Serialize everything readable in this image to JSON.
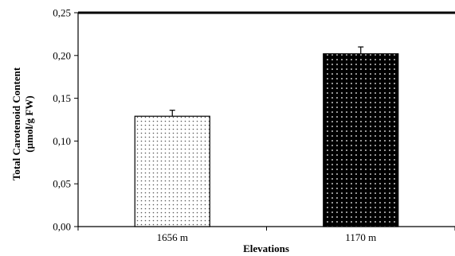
{
  "chart_data": {
    "type": "bar",
    "title": "",
    "xlabel": "Elevations",
    "ylabel_lines": [
      "Total Carotenoid Content",
      "(µmol/g  FW)"
    ],
    "categories": [
      "1656 m",
      "1170 m"
    ],
    "values": [
      0.129,
      0.202
    ],
    "errors": [
      0.007,
      0.008
    ],
    "ylim": [
      0,
      0.25
    ],
    "yticks": [
      0.0,
      0.05,
      0.1,
      0.15,
      0.2,
      0.25
    ],
    "ytick_labels": [
      "0,00",
      "0,05",
      "0,10",
      "0,15",
      "0,20",
      "0,25"
    ],
    "grid": false,
    "legend": "none",
    "bar_styles": [
      "light-dotted",
      "dark-dotted"
    ]
  }
}
